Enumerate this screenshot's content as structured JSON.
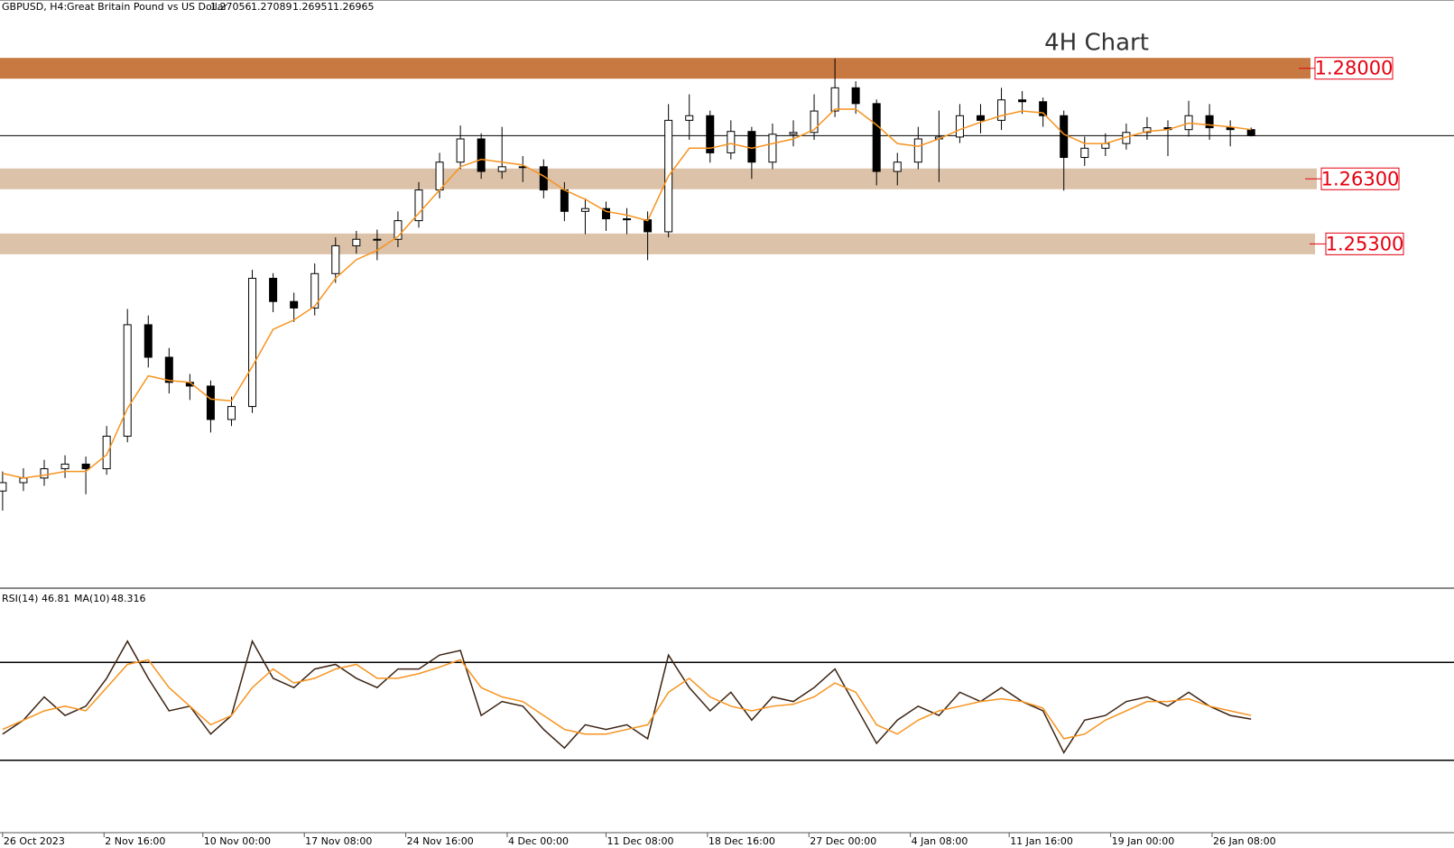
{
  "chart_data": [
    {
      "type": "candlestick",
      "symbol": "GBPUSD, H4:",
      "description": "Great Britain Pound vs US Dollar",
      "last_ohlc": [
        1.27056,
        1.27089,
        1.26951,
        1.26965
      ],
      "annotation": "4H Chart",
      "xlim": [
        -1,
        558
      ],
      "ylim": [
        1.2002,
        1.2905
      ],
      "xticks": [
        {
          "value": 0,
          "label": "26 Oct 2023"
        },
        {
          "value": 39,
          "label": "2 Nov 16:00"
        },
        {
          "value": 77,
          "label": "10 Nov 00:00"
        },
        {
          "value": 116,
          "label": "17 Nov 08:00"
        },
        {
          "value": 155,
          "label": "24 Nov 16:00"
        },
        {
          "value": 194,
          "label": "4 Dec 00:00"
        },
        {
          "value": 232,
          "label": "11 Dec 08:00"
        },
        {
          "value": 271,
          "label": "18 Dec 16:00"
        },
        {
          "value": 310,
          "label": "27 Dec 00:00"
        },
        {
          "value": 349,
          "label": "4 Jan 08:00"
        },
        {
          "value": 387,
          "label": "11 Jan 16:00"
        },
        {
          "value": 426,
          "label": "19 Jan 00:00"
        },
        {
          "value": 465,
          "label": "26 Jan 08:00"
        }
      ],
      "levels": [
        {
          "value": 1.28,
          "label": "1.28000",
          "color": "#c87941"
        },
        {
          "value": 1.263,
          "label": "1.26300",
          "color": "#dcc2a8"
        },
        {
          "value": 1.253,
          "label": "1.25300",
          "color": "#dcc2a8"
        }
      ],
      "up_color": "#ffffff",
      "down_color": "#000000",
      "x": [
        0,
        8,
        16,
        24,
        32,
        40,
        48,
        56,
        64,
        72,
        80,
        88,
        96,
        104,
        112,
        120,
        128,
        136,
        144,
        152,
        160,
        168,
        176,
        184,
        192,
        200,
        208,
        216,
        224,
        232,
        240,
        248,
        256,
        264,
        272,
        280,
        288,
        296,
        304,
        312,
        320,
        328,
        336,
        344,
        352,
        360,
        368,
        376,
        384,
        392,
        400,
        408,
        416,
        424,
        432,
        440,
        448,
        456,
        464,
        472,
        480
      ],
      "open": [
        1.215,
        1.21629,
        1.217,
        1.21843,
        1.21914,
        1.21843,
        1.22343,
        1.24057,
        1.23557,
        1.23171,
        1.23114,
        1.226,
        1.228,
        1.24771,
        1.24414,
        1.24314,
        1.24843,
        1.25271,
        1.25371,
        1.25371,
        1.25657,
        1.26129,
        1.26557,
        1.26914,
        1.26414,
        1.26486,
        1.26486,
        1.26129,
        1.258,
        1.25843,
        1.25686,
        1.25671,
        1.25486,
        1.272,
        1.27271,
        1.267,
        1.27029,
        1.26557,
        1.26986,
        1.27014,
        1.27343,
        1.277,
        1.27457,
        1.26414,
        1.26557,
        1.26914,
        1.26943,
        1.27271,
        1.272,
        1.27514,
        1.27486,
        1.27271,
        1.26629,
        1.26771,
        1.26843,
        1.27014,
        1.27086,
        1.27057,
        1.27271,
        1.27086,
        1.27057
      ],
      "high": [
        1.218,
        1.2185,
        1.2198,
        1.2205,
        1.2203,
        1.225,
        1.243,
        1.242,
        1.237,
        1.233,
        1.232,
        1.2295,
        1.249,
        1.2485,
        1.2455,
        1.25,
        1.254,
        1.255,
        1.2552,
        1.258,
        1.2625,
        1.267,
        1.2712,
        1.27,
        1.271,
        1.2665,
        1.266,
        1.2625,
        1.26,
        1.2595,
        1.2585,
        1.258,
        1.2745,
        1.276,
        1.2735,
        1.272,
        1.271,
        1.2715,
        1.272,
        1.276,
        1.2815,
        1.278,
        1.2752,
        1.267,
        1.271,
        1.2735,
        1.2745,
        1.2745,
        1.277,
        1.2765,
        1.2755,
        1.2735,
        1.2695,
        1.27,
        1.2715,
        1.2725,
        1.272,
        1.275,
        1.2745,
        1.272,
        1.27089
      ],
      "low": [
        1.212,
        1.215,
        1.2158,
        1.217,
        1.2145,
        1.2175,
        1.2225,
        1.234,
        1.23,
        1.229,
        1.224,
        1.225,
        1.227,
        1.2425,
        1.241,
        1.242,
        1.247,
        1.2515,
        1.2505,
        1.2525,
        1.2555,
        1.26,
        1.2645,
        1.263,
        1.263,
        1.2625,
        1.26,
        1.2565,
        1.2545,
        1.255,
        1.2545,
        1.2505,
        1.254,
        1.269,
        1.2655,
        1.266,
        1.263,
        1.2645,
        1.268,
        1.269,
        1.2725,
        1.273,
        1.262,
        1.262,
        1.2645,
        1.2625,
        1.2685,
        1.27,
        1.2705,
        1.273,
        1.271,
        1.2612,
        1.265,
        1.2665,
        1.2675,
        1.269,
        1.2665,
        1.2695,
        1.269,
        1.268,
        1.26951
      ],
      "close": [
        1.21629,
        1.217,
        1.21843,
        1.21914,
        1.21843,
        1.22343,
        1.24057,
        1.23557,
        1.23171,
        1.23114,
        1.226,
        1.228,
        1.24771,
        1.24414,
        1.24314,
        1.24843,
        1.25271,
        1.25371,
        1.25371,
        1.25657,
        1.26129,
        1.26557,
        1.26914,
        1.26414,
        1.26486,
        1.26486,
        1.26129,
        1.258,
        1.25843,
        1.25686,
        1.25671,
        1.25486,
        1.272,
        1.27271,
        1.267,
        1.27029,
        1.26557,
        1.26986,
        1.27014,
        1.27343,
        1.277,
        1.27457,
        1.26414,
        1.26557,
        1.26914,
        1.26943,
        1.27271,
        1.272,
        1.27514,
        1.27486,
        1.27271,
        1.26629,
        1.26771,
        1.26843,
        1.27014,
        1.27086,
        1.27057,
        1.27271,
        1.27086,
        1.27057,
        1.26965
      ],
      "ma_color": "#f7931e",
      "ma_values": [
        1.21771,
        1.217,
        1.21743,
        1.218,
        1.218,
        1.22057,
        1.22771,
        1.23271,
        1.232,
        1.23171,
        1.22914,
        1.22886,
        1.23414,
        1.23986,
        1.24129,
        1.24343,
        1.24771,
        1.25057,
        1.252,
        1.25414,
        1.25771,
        1.26129,
        1.26486,
        1.266,
        1.26557,
        1.26514,
        1.26343,
        1.26129,
        1.25986,
        1.258,
        1.25743,
        1.25657,
        1.26343,
        1.26771,
        1.26771,
        1.26843,
        1.26771,
        1.26843,
        1.26914,
        1.27057,
        1.27371,
        1.27371,
        1.27129,
        1.26843,
        1.268,
        1.26914,
        1.27057,
        1.27171,
        1.27271,
        1.27343,
        1.27314,
        1.26986,
        1.26843,
        1.26843,
        1.26943,
        1.27029,
        1.27057,
        1.27157,
        1.27129,
        1.271,
        1.27057
      ]
    },
    {
      "type": "line",
      "indicator": "RSI(14)",
      "value": 46.81,
      "ma_label": "MA(10)",
      "ma_value": 48.316,
      "ylim": [
        0,
        100
      ],
      "levels": [
        70,
        30
      ],
      "series": [
        {
          "color": "#3b2313",
          "values": [
            40.7,
            46.4,
            55.9,
            48.3,
            52.1,
            63.5,
            78.7,
            63.5,
            50.2,
            52.1,
            40.7,
            48.3,
            78.7,
            63.5,
            59.7,
            67.3,
            69.2,
            63.5,
            59.7,
            67.3,
            67.3,
            73,
            74.9,
            48.3,
            54,
            52.1,
            42.6,
            35,
            44.5,
            42.6,
            44.5,
            38.8,
            73,
            59.7,
            50.2,
            57.8,
            46.4,
            55.9,
            54,
            59.7,
            67.3,
            52.1,
            36.9,
            46.4,
            52.1,
            48.3,
            57.8,
            54,
            59.7,
            54,
            50.2,
            33.1,
            46.4,
            48.3,
            54,
            55.9,
            52.1,
            57.8,
            52.1,
            48.3,
            46.81
          ]
        },
        {
          "color": "#f7931e",
          "values": [
            42.6,
            46.4,
            50.2,
            52.1,
            50.2,
            59.7,
            69.2,
            71.1,
            59.7,
            52.1,
            44.5,
            48.3,
            59.7,
            67.3,
            61.6,
            63.5,
            67.3,
            69.2,
            63.5,
            63.5,
            65.4,
            68.1,
            71.1,
            59.7,
            55.9,
            54,
            48.3,
            42.6,
            40.7,
            40.7,
            42.6,
            44.5,
            57.8,
            63.5,
            55.9,
            52.1,
            50.2,
            52.1,
            52.9,
            55.9,
            61.6,
            57.8,
            44.5,
            40.7,
            46.4,
            50.2,
            52.1,
            54,
            55.1,
            54,
            51.3,
            38.8,
            40.7,
            46.4,
            50.2,
            54,
            54,
            55.1,
            52.1,
            50.2,
            48.316
          ]
        }
      ]
    }
  ]
}
